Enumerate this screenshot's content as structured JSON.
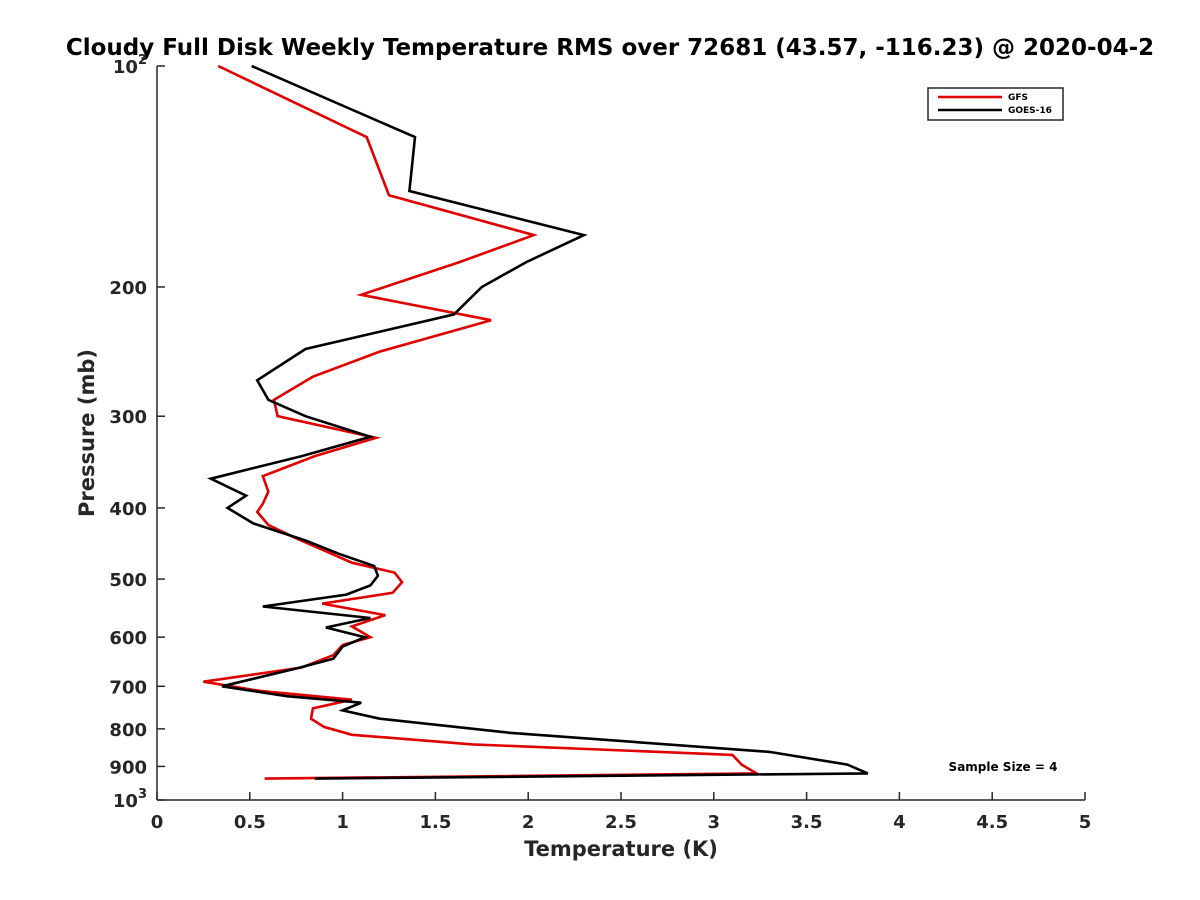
{
  "chart_data": {
    "type": "line",
    "title": "Cloudy Full Disk Weekly Temperature RMS over 72681 (43.57, -116.23) @ 2020-04-2",
    "xlabel": "Temperature (K)",
    "ylabel": "Pressure (mb)",
    "xlim": [
      0,
      5
    ],
    "ylim": [
      100,
      1000
    ],
    "y_scale": "log",
    "y_reversed": true,
    "grid": false,
    "legend_position": "top-right",
    "x_ticks": [
      0,
      0.5,
      1,
      1.5,
      2,
      2.5,
      3,
      3.5,
      4,
      4.5,
      5
    ],
    "x_tick_labels": [
      "0",
      "0.5",
      "1",
      "1.5",
      "2",
      "2.5",
      "3",
      "3.5",
      "4",
      "4.5",
      "5"
    ],
    "y_ticks": [
      {
        "value": 100,
        "base": "10",
        "exp": "2"
      },
      {
        "value": 200,
        "label": "200"
      },
      {
        "value": 300,
        "label": "300"
      },
      {
        "value": 400,
        "label": "400"
      },
      {
        "value": 500,
        "label": "500"
      },
      {
        "value": 600,
        "label": "600"
      },
      {
        "value": 700,
        "label": "700"
      },
      {
        "value": 800,
        "label": "800"
      },
      {
        "value": 900,
        "label": "900"
      },
      {
        "value": 1000,
        "base": "10",
        "exp": "3"
      }
    ],
    "series": [
      {
        "name": "GFS",
        "color": "#e00000",
        "points": [
          [
            0.33,
            100
          ],
          [
            1.13,
            125
          ],
          [
            1.25,
            150
          ],
          [
            2.03,
            170
          ],
          [
            1.63,
            185
          ],
          [
            1.1,
            205
          ],
          [
            1.8,
            222
          ],
          [
            1.2,
            245
          ],
          [
            0.84,
            265
          ],
          [
            0.63,
            285
          ],
          [
            0.65,
            300
          ],
          [
            1.18,
            321
          ],
          [
            0.85,
            340
          ],
          [
            0.57,
            362
          ],
          [
            0.6,
            380
          ],
          [
            0.57,
            395
          ],
          [
            0.54,
            405
          ],
          [
            0.6,
            422
          ],
          [
            0.75,
            440
          ],
          [
            0.9,
            457
          ],
          [
            1.05,
            475
          ],
          [
            1.28,
            490
          ],
          [
            1.32,
            505
          ],
          [
            1.27,
            522
          ],
          [
            0.89,
            540
          ],
          [
            1.23,
            560
          ],
          [
            1.05,
            580
          ],
          [
            1.15,
            600
          ],
          [
            1.0,
            615
          ],
          [
            0.95,
            635
          ],
          [
            0.78,
            660
          ],
          [
            0.25,
            690
          ],
          [
            0.55,
            710
          ],
          [
            1.05,
            730
          ],
          [
            0.84,
            750
          ],
          [
            0.83,
            775
          ],
          [
            0.9,
            795
          ],
          [
            1.05,
            815
          ],
          [
            1.7,
            840
          ],
          [
            3.1,
            868
          ],
          [
            3.15,
            895
          ],
          [
            3.23,
            920
          ],
          [
            0.58,
            935
          ]
        ]
      },
      {
        "name": "GOES-16",
        "color": "#000000",
        "points": [
          [
            0.51,
            100
          ],
          [
            1.39,
            125
          ],
          [
            1.36,
            148
          ],
          [
            2.3,
            170
          ],
          [
            1.99,
            185
          ],
          [
            1.75,
            200
          ],
          [
            1.6,
            218
          ],
          [
            0.8,
            243
          ],
          [
            0.54,
            268
          ],
          [
            0.6,
            285
          ],
          [
            0.8,
            300
          ],
          [
            1.15,
            320
          ],
          [
            0.78,
            340
          ],
          [
            0.29,
            365
          ],
          [
            0.48,
            385
          ],
          [
            0.38,
            400
          ],
          [
            0.52,
            420
          ],
          [
            0.8,
            443
          ],
          [
            0.98,
            462
          ],
          [
            1.17,
            480
          ],
          [
            1.19,
            495
          ],
          [
            1.15,
            510
          ],
          [
            1.02,
            525
          ],
          [
            0.57,
            545
          ],
          [
            1.15,
            565
          ],
          [
            0.91,
            582
          ],
          [
            1.12,
            600
          ],
          [
            1.0,
            618
          ],
          [
            0.95,
            642
          ],
          [
            0.75,
            662
          ],
          [
            0.35,
            700
          ],
          [
            0.7,
            722
          ],
          [
            1.1,
            737
          ],
          [
            1.0,
            755
          ],
          [
            1.2,
            775
          ],
          [
            1.9,
            810
          ],
          [
            3.3,
            860
          ],
          [
            3.72,
            895
          ],
          [
            3.83,
            920
          ],
          [
            0.85,
            935
          ]
        ]
      }
    ],
    "annotation": "Sample Size = 4"
  }
}
